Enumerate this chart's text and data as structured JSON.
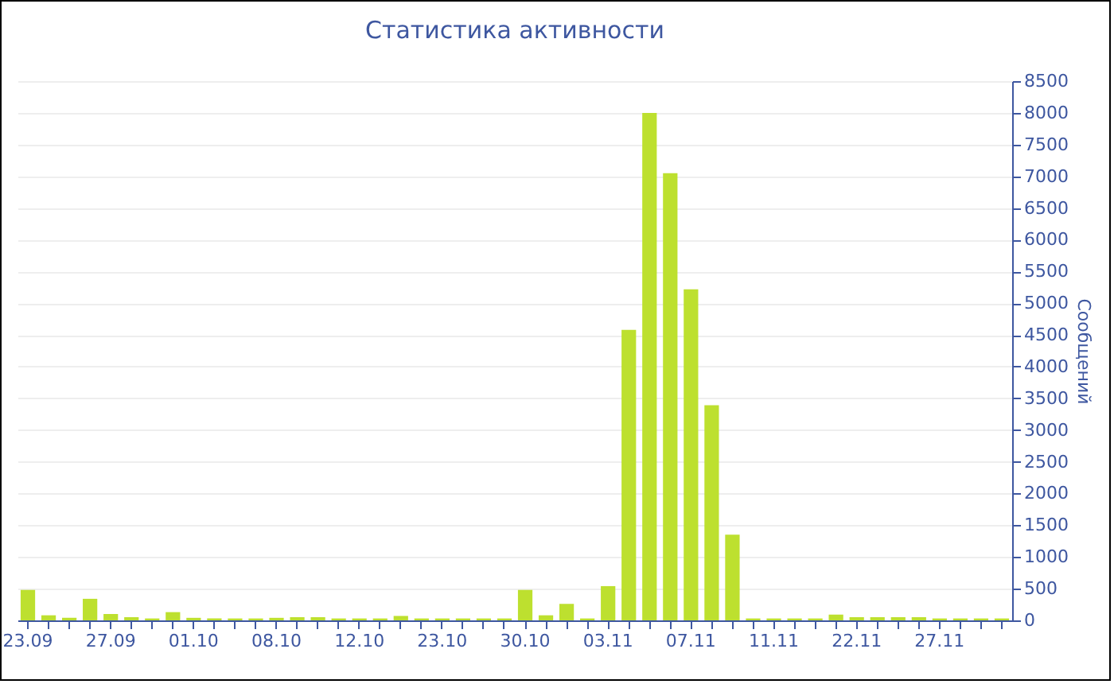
{
  "chart_data": {
    "type": "bar",
    "title": "Статистика активности",
    "ylabel": "Сообщений",
    "categories": [
      "23.09",
      null,
      null,
      null,
      "27.09",
      null,
      null,
      null,
      "01.10",
      null,
      null,
      null,
      "08.10",
      null,
      null,
      null,
      "12.10",
      null,
      null,
      null,
      "23.10",
      null,
      null,
      null,
      "30.10",
      null,
      null,
      null,
      "03.11",
      null,
      null,
      null,
      "07.11",
      null,
      null,
      null,
      "11.11",
      null,
      null,
      null,
      "22.11",
      null,
      null,
      null,
      "27.11",
      null,
      null,
      null
    ],
    "values": [
      480,
      80,
      40,
      340,
      100,
      50,
      30,
      130,
      40,
      30,
      30,
      30,
      40,
      50,
      50,
      30,
      30,
      30,
      70,
      30,
      30,
      30,
      30,
      30,
      480,
      80,
      260,
      30,
      540,
      4580,
      8000,
      7050,
      5220,
      3390,
      1350,
      30,
      30,
      30,
      30,
      90,
      50,
      50,
      50,
      50,
      30,
      30,
      30,
      30
    ],
    "color": "#bde02f",
    "ylim": [
      0,
      8500
    ],
    "yticks": [
      0,
      500,
      1000,
      1500,
      2000,
      2500,
      3000,
      3500,
      4000,
      4500,
      5000,
      5500,
      6000,
      6500,
      7000,
      7500,
      8000,
      8500
    ],
    "grid": "y"
  }
}
